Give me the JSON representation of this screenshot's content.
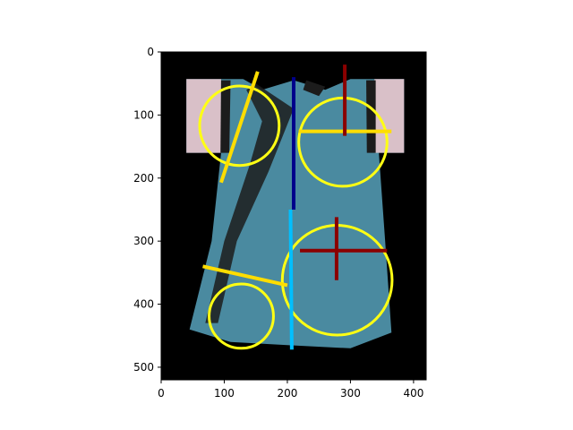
{
  "chart_data": {
    "type": "scatter",
    "title": "",
    "xlabel": "",
    "ylabel": "",
    "xlim": [
      0,
      420
    ],
    "ylim": [
      520,
      0
    ],
    "xticks": [
      0,
      100,
      200,
      300,
      400
    ],
    "yticks": [
      0,
      100,
      200,
      300,
      400,
      500
    ],
    "grid": false,
    "legend": "none",
    "image": {
      "description_color_background": "#000000",
      "robe_color": "#4a8aa0",
      "sleeve_color": "#d9c0c8",
      "trim_color": "#1c1c1c"
    },
    "circles": [
      {
        "cx": 124,
        "cy": 117,
        "r": 63,
        "color": "#ffff14"
      },
      {
        "cx": 288,
        "cy": 143,
        "r": 70,
        "color": "#ffff14"
      },
      {
        "cx": 279,
        "cy": 362,
        "r": 87,
        "color": "#ffff14"
      },
      {
        "cx": 127,
        "cy": 419,
        "r": 51,
        "color": "#ffff14"
      }
    ],
    "lines": [
      {
        "x": [
          95,
          153
        ],
        "y": [
          207,
          31
        ],
        "color": "#ffdd00"
      },
      {
        "x": [
          218,
          365
        ],
        "y": [
          126,
          126
        ],
        "color": "#ffdd00"
      },
      {
        "x": [
          66,
          200
        ],
        "y": [
          340,
          370
        ],
        "color": "#ffdd00"
      },
      {
        "x": [
          291,
          291
        ],
        "y": [
          20,
          133
        ],
        "color": "#8b0000"
      },
      {
        "x": [
          220,
          358
        ],
        "y": [
          315,
          315
        ],
        "color": "#8b0000"
      },
      {
        "x": [
          278,
          278
        ],
        "y": [
          262,
          362
        ],
        "color": "#8b0000"
      },
      {
        "x": [
          210,
          210
        ],
        "y": [
          40,
          250
        ],
        "color": "#00008b"
      },
      {
        "x": [
          205,
          207
        ],
        "y": [
          250,
          472
        ],
        "color": "#00bfff"
      }
    ]
  }
}
